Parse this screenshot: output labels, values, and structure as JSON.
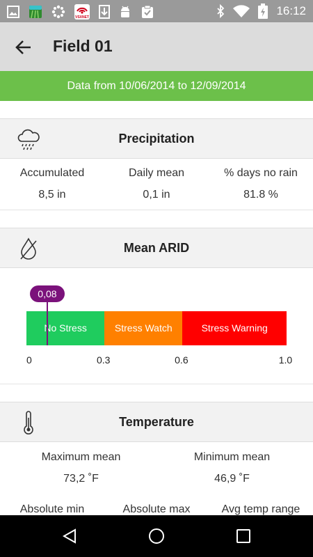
{
  "status_bar": {
    "time": "16:12",
    "icons": [
      "image-icon",
      "app-icon",
      "dots-icon",
      "vsxnet-icon",
      "download-icon",
      "android-icon",
      "clipboard-check-icon",
      "bluetooth-icon",
      "wifi-icon",
      "battery-icon"
    ],
    "app_badge": "VSXNET"
  },
  "app_bar": {
    "title": "Field 01",
    "back_icon": "arrow-back-icon"
  },
  "date_range": "Data from 10/06/2014 to 12/09/2014",
  "precipitation": {
    "title": "Precipitation",
    "icon": "cloud-rain-icon",
    "stats": [
      {
        "label": "Accumulated",
        "value": "8,5 in"
      },
      {
        "label": "Daily mean",
        "value": "0,1 in"
      },
      {
        "label": "% days no rain",
        "value": "81.8 %"
      }
    ]
  },
  "arid": {
    "title": "Mean ARID",
    "icon": "water-drop-icon",
    "marker_label": "0,08",
    "marker_value": 0.08,
    "scale_min": 0,
    "scale_max": 1.0,
    "segments": [
      {
        "label": "No Stress",
        "from": 0,
        "to": 0.3,
        "color": "#1fcc5e"
      },
      {
        "label": "Stress Watch",
        "from": 0.3,
        "to": 0.6,
        "color": "#ff8000"
      },
      {
        "label": "Stress Warning",
        "from": 0.6,
        "to": 1.0,
        "color": "#ff0000"
      }
    ],
    "ticks": [
      "0",
      "0.3",
      "0.6",
      "1.0"
    ],
    "marker_color": "#7b127b"
  },
  "temperature": {
    "title": "Temperature",
    "icon": "thermometer-icon",
    "stats_top": [
      {
        "label": "Maximum mean",
        "value": "73,2 ˚F"
      },
      {
        "label": "Minimum mean",
        "value": "46,9 ˚F"
      }
    ],
    "stats_bottom": [
      {
        "label": "Absolute min"
      },
      {
        "label": "Absolute max"
      },
      {
        "label": "Avg temp range"
      }
    ]
  },
  "nav_bar": {
    "buttons": [
      "nav-back-icon",
      "nav-home-icon",
      "nav-recents-icon"
    ]
  },
  "colors": {
    "accent_green": "#6cc04a",
    "app_bar": "#dcdcdc",
    "status_bar": "#9a9a9a"
  }
}
